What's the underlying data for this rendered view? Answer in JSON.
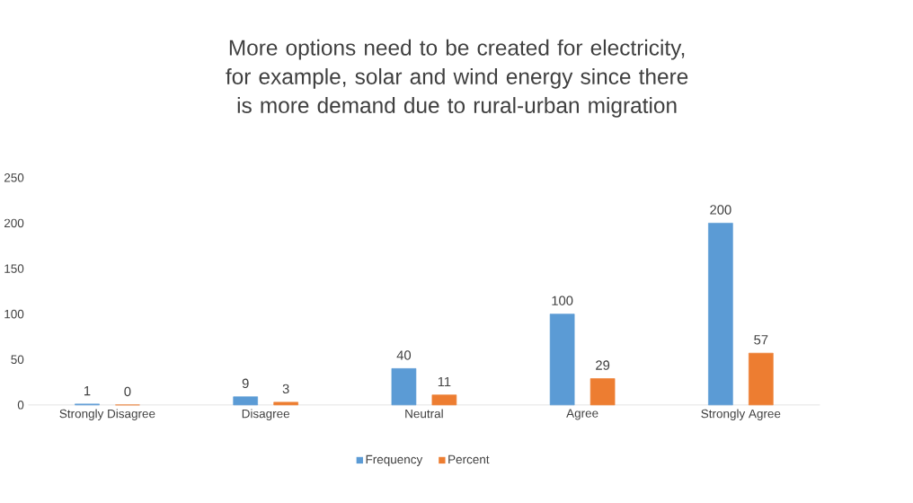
{
  "chart_data": {
    "type": "bar",
    "title": "More options need to be created for electricity, for example, solar and wind energy since there is more demand due to rural-urban migration",
    "categories": [
      "Strongly Disagree",
      "Disagree",
      "Neutral",
      "Agree",
      "Strongly Agree"
    ],
    "series": [
      {
        "name": "Frequency",
        "color": "#5b9bd5",
        "values": [
          1,
          9,
          40,
          100,
          200
        ]
      },
      {
        "name": "Percent",
        "color": "#ed7d31",
        "values": [
          0,
          3,
          11,
          29,
          57
        ]
      }
    ],
    "ylim": [
      0,
      250
    ],
    "yticks": [
      0,
      50,
      100,
      150,
      200,
      250
    ],
    "data_labels": true,
    "legend": "bottom",
    "grid": false
  }
}
